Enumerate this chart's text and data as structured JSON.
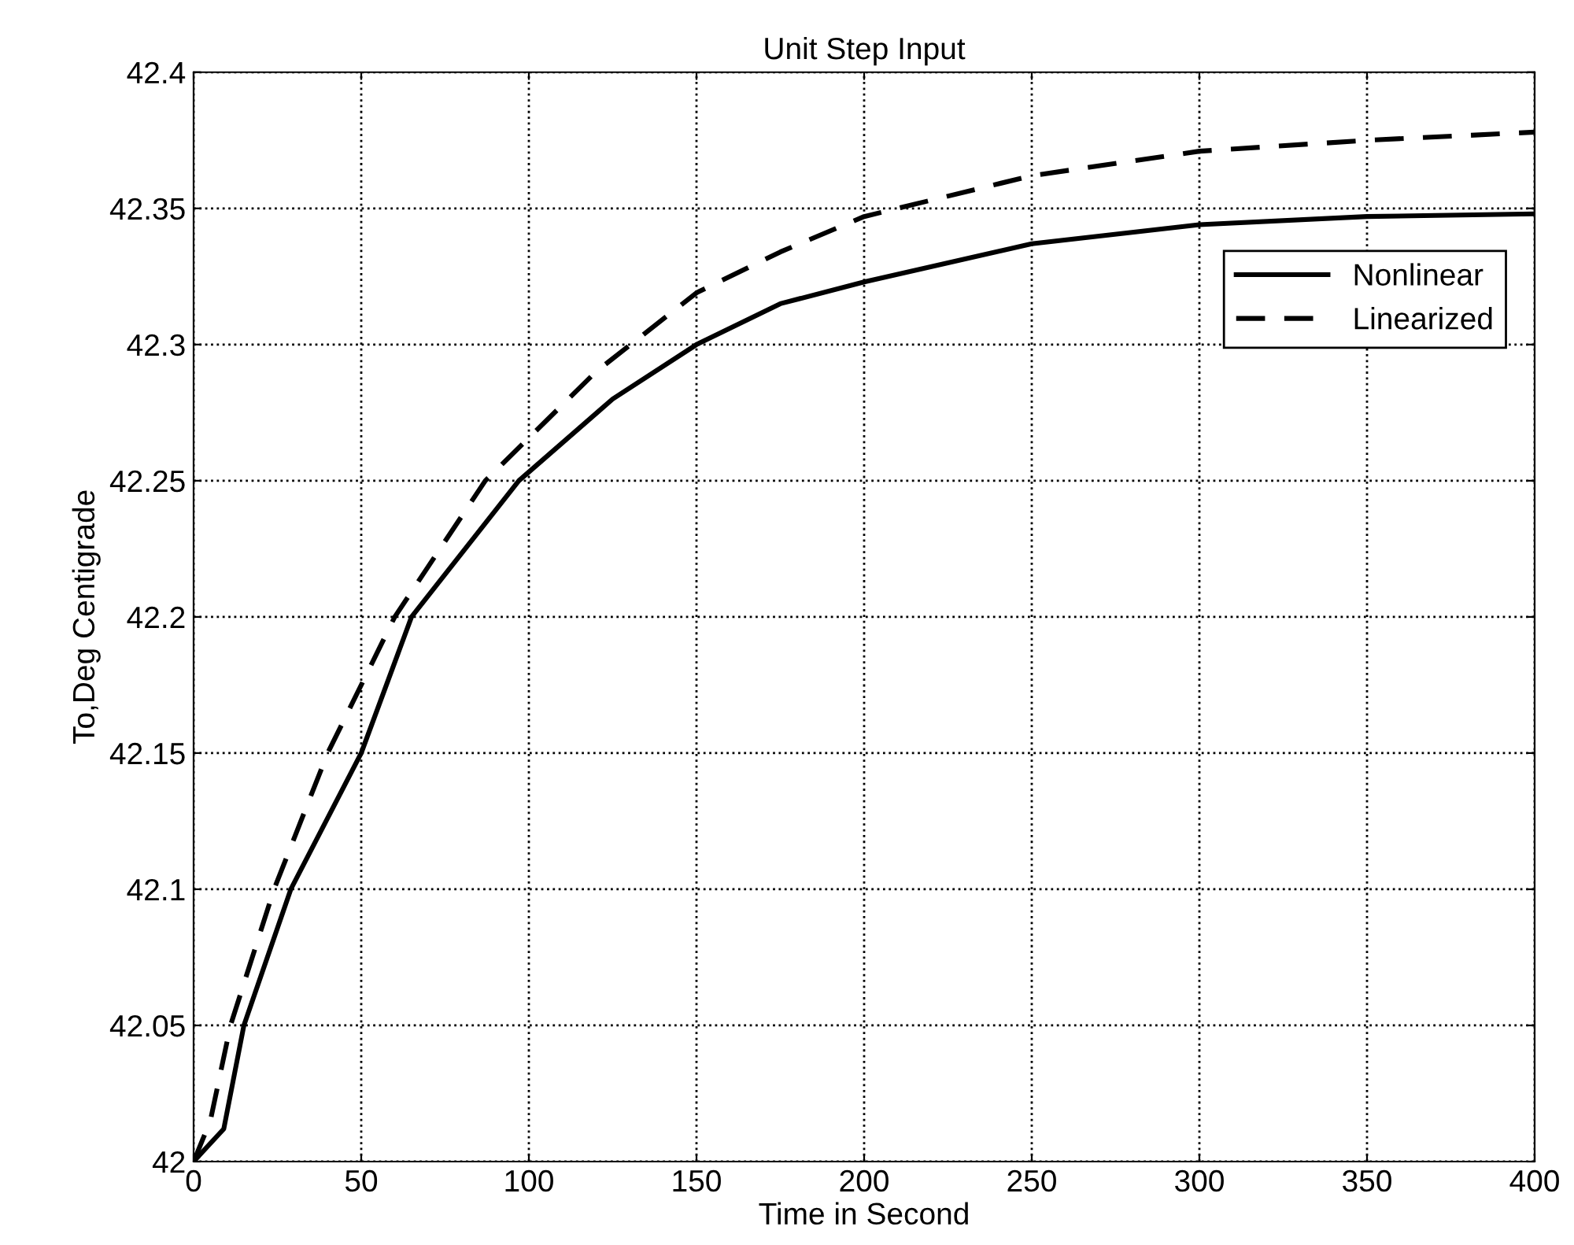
{
  "chart_data": {
    "type": "line",
    "title": "Unit Step Input",
    "xlabel": "Time in Second",
    "ylabel": "To,Deg Centigrade",
    "xlim": [
      0,
      400
    ],
    "xticks": [
      0,
      50,
      100,
      150,
      200,
      250,
      300,
      350,
      400
    ],
    "ylim": [
      42,
      42.4
    ],
    "yticks": [
      42,
      42.05,
      42.1,
      42.15,
      42.2,
      42.25,
      42.3,
      42.35,
      42.4
    ],
    "grid": true,
    "legend": "top right",
    "marker": "none",
    "series": [
      {
        "name": "Nonlinear",
        "color": "#000000",
        "line_style": "solid",
        "x": [
          0,
          9,
          15,
          29,
          50,
          65,
          97,
          125,
          150,
          175,
          200,
          250,
          300,
          350,
          400
        ],
        "values": [
          42.0,
          42.012,
          42.05,
          42.1,
          42.15,
          42.2,
          42.25,
          42.28,
          42.3,
          42.315,
          42.323,
          42.337,
          42.344,
          42.347,
          42.348
        ]
      },
      {
        "name": "Linearized",
        "color": "#000000",
        "line_style": "dashed",
        "x": [
          0,
          5,
          11,
          24,
          40,
          60,
          87,
          120,
          150,
          175,
          200,
          250,
          300,
          350,
          400
        ],
        "values": [
          42.0,
          42.015,
          42.05,
          42.1,
          42.15,
          42.2,
          42.25,
          42.29,
          42.319,
          42.334,
          42.347,
          42.362,
          42.371,
          42.375,
          42.378
        ]
      }
    ]
  }
}
